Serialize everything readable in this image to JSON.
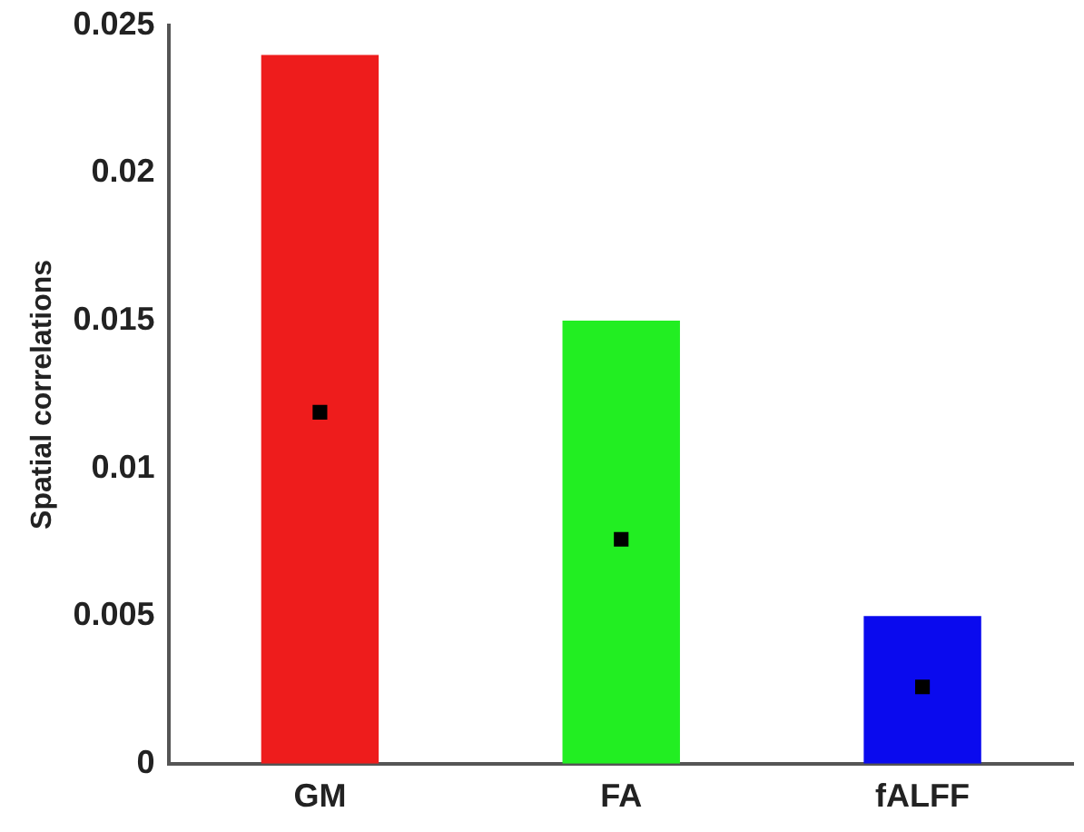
{
  "chart_data": {
    "type": "bar",
    "ylabel": "Spatial correlations",
    "categories": [
      "GM",
      "FA",
      "fALFF"
    ],
    "series": [
      {
        "colors": [
          "#ee1c1c",
          "#22ee22",
          "#0a0aee"
        ],
        "values": [
          0.024,
          0.015,
          0.005
        ]
      },
      {
        "type": "scatter",
        "color": "#000000",
        "x": [
          "GM",
          "FA",
          "fALFF"
        ],
        "values": [
          0.0119,
          0.0076,
          0.0026
        ]
      }
    ],
    "ylim": [
      0,
      0.025
    ],
    "yticks": [
      0,
      0.005,
      0.01,
      0.015,
      0.02,
      0.025
    ],
    "grid": false,
    "legend": false,
    "marker": "square"
  }
}
